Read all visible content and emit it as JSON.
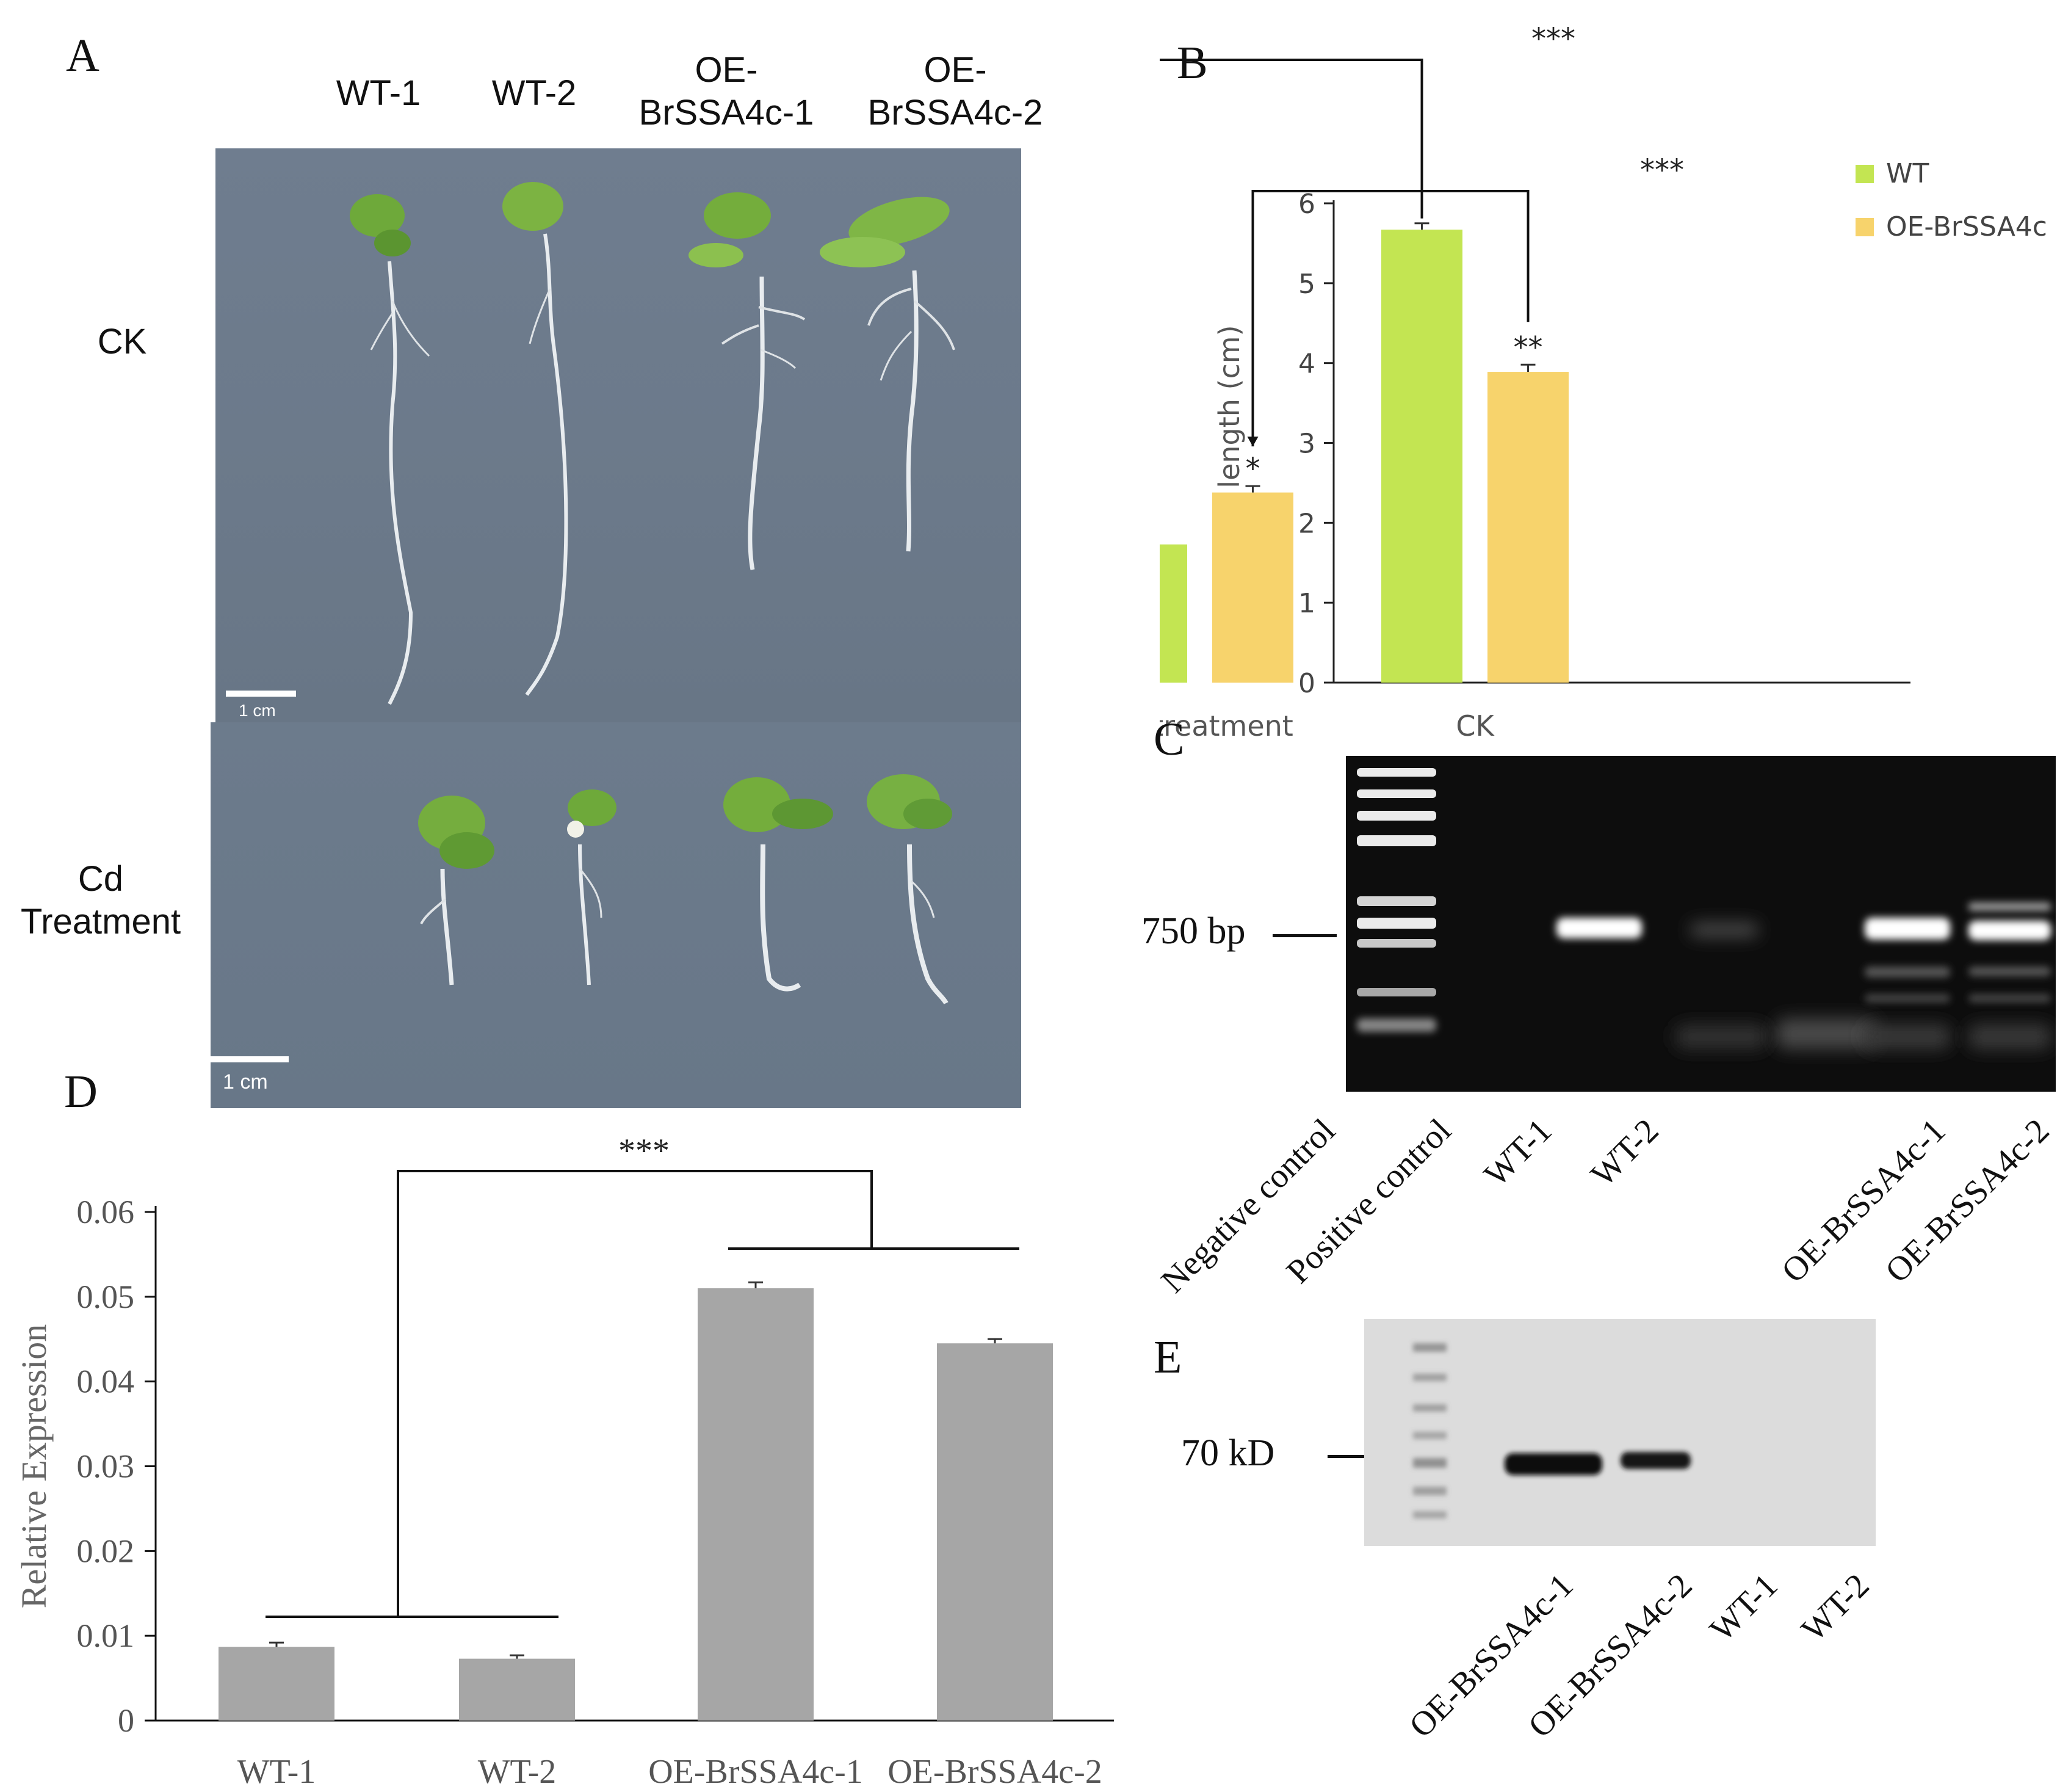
{
  "panels": {
    "A": {
      "label": "A",
      "columns": [
        "WT-1",
        "WT-2",
        "OE-\nBrSSA4c-1",
        "OE-\nBrSSA4c-2"
      ],
      "rows": [
        "CK",
        "Cd\nTreatment"
      ],
      "scale_bar_top": "1 cm",
      "scale_bar_bottom": "1 cm"
    },
    "B": {
      "label": "B"
    },
    "C": {
      "label": "C",
      "marker": "750 bp",
      "lanes": [
        "Negative control",
        "Positive control",
        "WT-1",
        "WT-2",
        "OE-BrSSA4c-1",
        "OE-BrSSA4c-2"
      ]
    },
    "D": {
      "label": "D"
    },
    "E": {
      "label": "E",
      "marker": "70 kD",
      "lanes": [
        "OE-BrSSA4c-1",
        "OE-BrSSA4c-2",
        "WT-1",
        "WT-2"
      ]
    }
  },
  "chart_data": [
    {
      "panel": "B",
      "type": "bar",
      "categories": [
        "CK",
        "Cd treatment"
      ],
      "series": [
        {
          "name": "WT",
          "values": [
            5.67,
            1.73
          ],
          "errors": [
            0.08,
            0.1
          ],
          "color": "#c3e552"
        },
        {
          "name": "OE-BrSSA4c",
          "values": [
            3.89,
            2.38
          ],
          "errors": [
            0.09,
            0.08
          ],
          "color": "#f7d36c"
        }
      ],
      "ylabel": "Root length (cm)",
      "yticks": [
        "0",
        "1",
        "2",
        "3",
        "4",
        "5",
        "6"
      ],
      "ylim": [
        0,
        6
      ],
      "bar_annotations": [
        {
          "series": 1,
          "category": 0,
          "text": "**"
        },
        {
          "series": 1,
          "category": 1,
          "text": "*"
        }
      ],
      "brackets": [
        {
          "from": [
            0,
            0
          ],
          "to": [
            0,
            1
          ],
          "text": "***"
        },
        {
          "from": [
            1,
            0
          ],
          "to": [
            1,
            1
          ],
          "text": "***"
        }
      ],
      "legend_position": "top-right",
      "grid": false
    },
    {
      "panel": "D",
      "type": "bar",
      "categories": [
        "WT-1",
        "WT-2",
        "OE-BrSSA4c-1",
        "OE-BrSSA4c-2"
      ],
      "values": [
        0.0087,
        0.0073,
        0.051,
        0.0445
      ],
      "errors": [
        0.0005,
        0.0004,
        0.0007,
        0.0005
      ],
      "color": "#a6a6a6",
      "ylabel": "Relative Expression",
      "yticks": [
        "0",
        "0.01",
        "0.02",
        "0.03",
        "0.04",
        "0.05",
        "0.06"
      ],
      "ylim": [
        0,
        0.06
      ],
      "group_bracket": {
        "text": "***"
      },
      "grid": false
    }
  ]
}
